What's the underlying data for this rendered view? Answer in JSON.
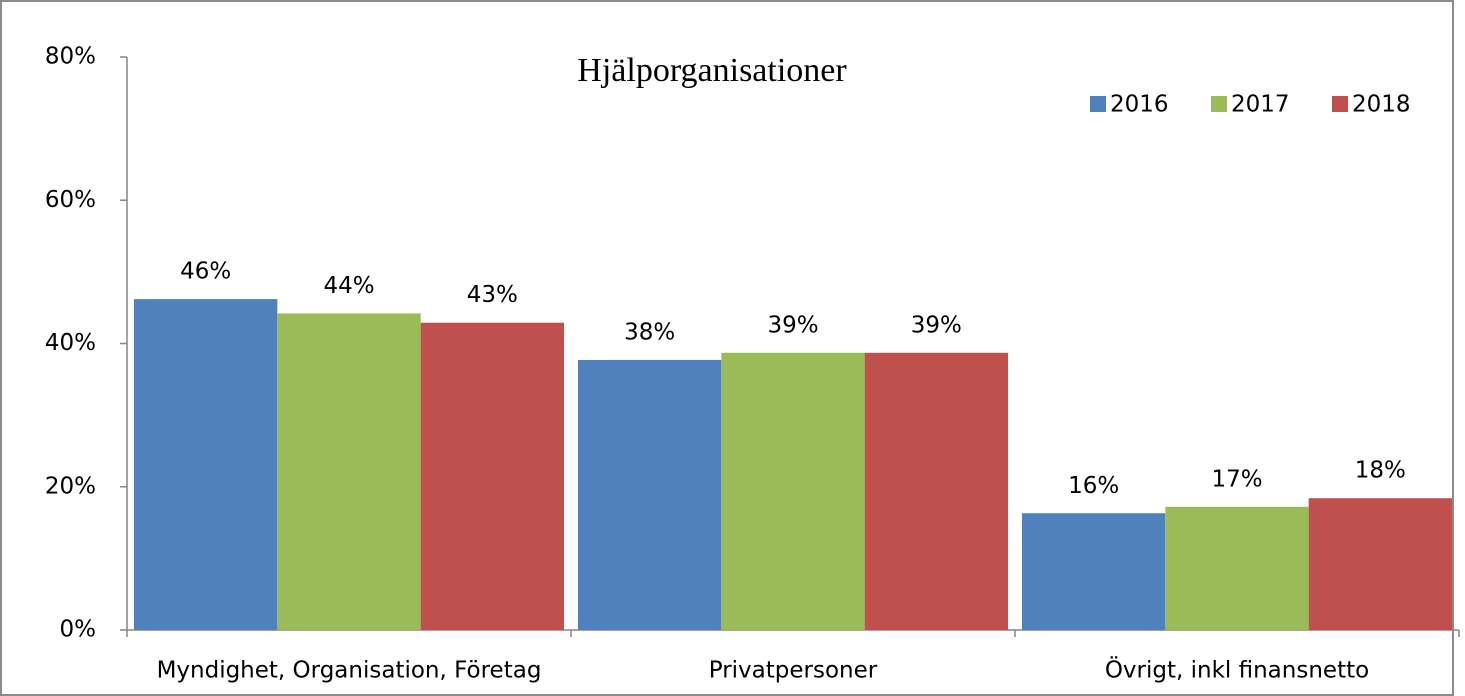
{
  "chart_data": {
    "type": "bar",
    "title": "Hjälporganisationer",
    "categories": [
      "Myndighet, Organisation, Företag",
      "Privatpersoner",
      "Övrigt, inkl finansnetto"
    ],
    "series": [
      {
        "name": "2016",
        "color": "#4f81bd",
        "values": [
          46.2,
          37.7,
          16.3
        ],
        "value_labels": [
          "46%",
          "38%",
          "16%"
        ]
      },
      {
        "name": "2017",
        "color": "#9bbb59",
        "values": [
          44.2,
          38.7,
          17.2
        ],
        "value_labels": [
          "44%",
          "39%",
          "17%"
        ]
      },
      {
        "name": "2018",
        "color": "#c0504d",
        "values": [
          42.9,
          38.7,
          18.4
        ],
        "value_labels": [
          "43%",
          "39%",
          "18%"
        ]
      }
    ],
    "ylim": [
      0,
      80
    ],
    "yticks": [
      {
        "value": 0,
        "label": "0%"
      },
      {
        "value": 20,
        "label": "20%"
      },
      {
        "value": 40,
        "label": "40%"
      },
      {
        "value": 60,
        "label": "60%"
      },
      {
        "value": 80,
        "label": "80%"
      }
    ],
    "legend": "top-right"
  }
}
